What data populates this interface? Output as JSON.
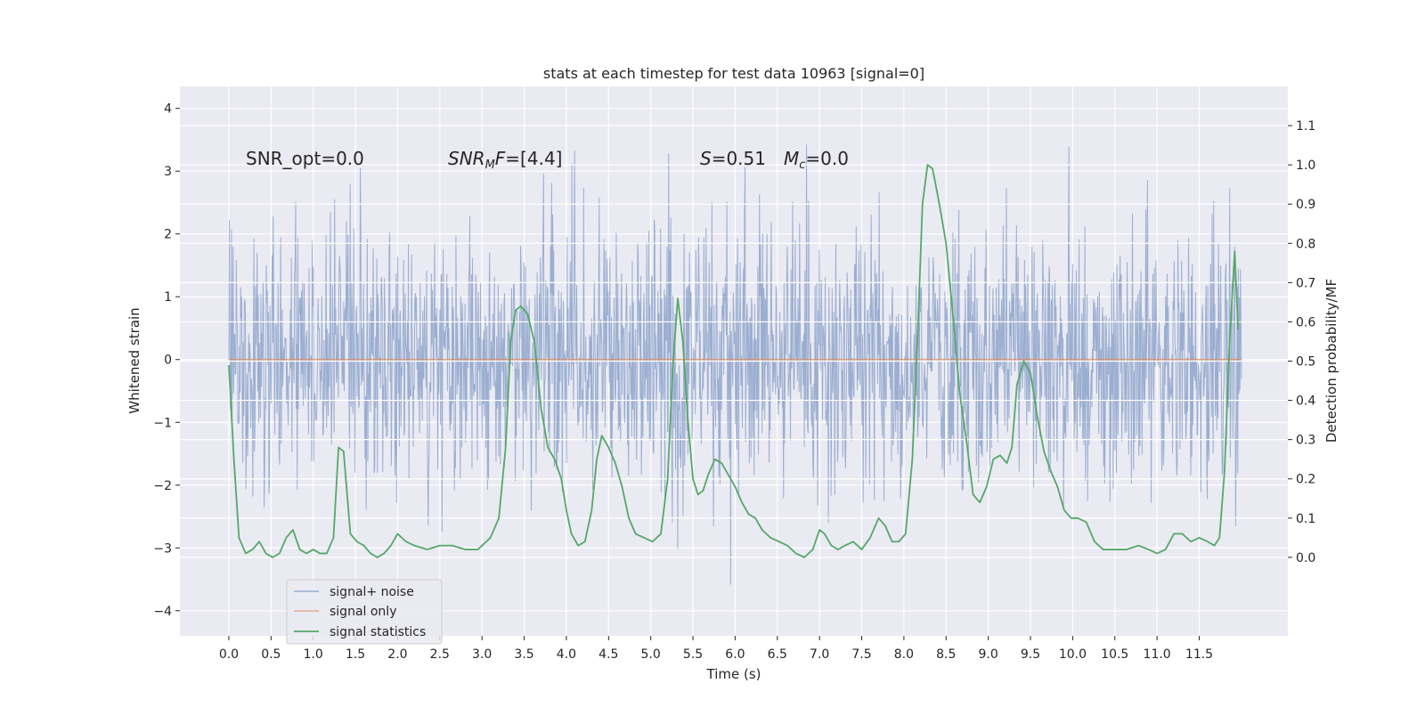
{
  "chart_data": {
    "type": "line",
    "title": "stats at each timestep for test data 10963 [signal=0]",
    "xlabel": "Time (s)",
    "ylabel_left": "Whitened strain",
    "ylabel_right": "Detection probability/MF",
    "xlim": [
      -0.58,
      12.55
    ],
    "ylim_left": [
      -4.4,
      4.35
    ],
    "ylim_right": [
      -0.2,
      1.2
    ],
    "x_ticks": [
      "0.0",
      "0.5",
      "1.0",
      "1.5",
      "2.0",
      "2.5",
      "3.0",
      "3.5",
      "4.0",
      "4.5",
      "5.0",
      "5.5",
      "6.0",
      "6.5",
      "7.0",
      "7.5",
      "8.0",
      "8.5",
      "9.0",
      "9.5",
      "10.0",
      "10.5",
      "11.0",
      "11.5"
    ],
    "y_ticks_left": [
      "4",
      "3",
      "2",
      "1",
      "0",
      "−1",
      "−2",
      "−3",
      "−4"
    ],
    "y_ticks_right": [
      "1.1",
      "1.0",
      "0.9",
      "0.8",
      "0.7",
      "0.6",
      "0.5",
      "0.4",
      "0.3",
      "0.2",
      "0.1",
      "0.0"
    ],
    "grid": true,
    "legend_position": "lower-left",
    "annotations": {
      "snr_opt": "SNR_opt=0.0",
      "snr_mf_main": "SNR",
      "snr_mf_sub": "M",
      "snr_mf_rest": "F=[4.4]",
      "s_label": "S",
      "s_value": "=0.51",
      "mc_main": "M",
      "mc_sub": "c",
      "mc_value": "=0.0"
    },
    "series": [
      {
        "name": "signal+ noise",
        "color": "#4c72b0",
        "axis": "left",
        "duration": 12.0,
        "envelope": [
          -4.1,
          3.95
        ]
      },
      {
        "name": "signal only",
        "color": "#dd8452",
        "axis": "left",
        "x": [
          0.0,
          12.0
        ],
        "y": [
          0.0,
          0.0
        ]
      },
      {
        "name": "signal statistics",
        "color": "#55a868",
        "axis": "right",
        "x": [
          0.0,
          0.06,
          0.12,
          0.2,
          0.28,
          0.36,
          0.44,
          0.52,
          0.6,
          0.68,
          0.76,
          0.84,
          0.92,
          1.0,
          1.08,
          1.16,
          1.24,
          1.3,
          1.36,
          1.44,
          1.52,
          1.6,
          1.68,
          1.76,
          1.84,
          1.92,
          2.0,
          2.1,
          2.2,
          2.35,
          2.5,
          2.65,
          2.8,
          2.95,
          3.1,
          3.2,
          3.28,
          3.34,
          3.4,
          3.46,
          3.54,
          3.62,
          3.7,
          3.78,
          3.86,
          3.94,
          4.0,
          4.06,
          4.14,
          4.22,
          4.3,
          4.36,
          4.42,
          4.5,
          4.58,
          4.66,
          4.74,
          4.82,
          4.92,
          5.02,
          5.12,
          5.2,
          5.26,
          5.32,
          5.38,
          5.44,
          5.5,
          5.56,
          5.62,
          5.68,
          5.76,
          5.84,
          5.92,
          6.0,
          6.08,
          6.16,
          6.24,
          6.32,
          6.42,
          6.52,
          6.62,
          6.72,
          6.82,
          6.92,
          7.0,
          7.06,
          7.14,
          7.22,
          7.3,
          7.4,
          7.5,
          7.6,
          7.7,
          7.78,
          7.86,
          7.94,
          8.02,
          8.1,
          8.16,
          8.22,
          8.28,
          8.34,
          8.42,
          8.5,
          8.58,
          8.66,
          8.74,
          8.82,
          8.9,
          8.98,
          9.06,
          9.14,
          9.22,
          9.28,
          9.34,
          9.42,
          9.5,
          9.58,
          9.66,
          9.74,
          9.82,
          9.9,
          9.98,
          10.06,
          10.16,
          10.26,
          10.36,
          10.5,
          10.64,
          10.78,
          10.9,
          11.0,
          11.1,
          11.2,
          11.3,
          11.4,
          11.5,
          11.6,
          11.68,
          11.74,
          11.8,
          11.86,
          11.92,
          11.96
        ],
        "y": [
          0.49,
          0.25,
          0.05,
          0.01,
          0.02,
          0.04,
          0.01,
          0.0,
          0.01,
          0.05,
          0.07,
          0.02,
          0.01,
          0.02,
          0.01,
          0.01,
          0.05,
          0.28,
          0.27,
          0.06,
          0.04,
          0.03,
          0.01,
          0.0,
          0.01,
          0.03,
          0.06,
          0.04,
          0.03,
          0.02,
          0.03,
          0.03,
          0.02,
          0.02,
          0.05,
          0.1,
          0.28,
          0.55,
          0.63,
          0.64,
          0.62,
          0.55,
          0.38,
          0.28,
          0.25,
          0.2,
          0.12,
          0.06,
          0.03,
          0.04,
          0.12,
          0.25,
          0.31,
          0.28,
          0.24,
          0.18,
          0.1,
          0.06,
          0.05,
          0.04,
          0.06,
          0.2,
          0.48,
          0.66,
          0.55,
          0.35,
          0.2,
          0.16,
          0.17,
          0.21,
          0.25,
          0.24,
          0.21,
          0.18,
          0.14,
          0.11,
          0.1,
          0.07,
          0.05,
          0.04,
          0.03,
          0.01,
          0.0,
          0.02,
          0.07,
          0.06,
          0.03,
          0.02,
          0.03,
          0.04,
          0.02,
          0.05,
          0.1,
          0.08,
          0.04,
          0.04,
          0.06,
          0.25,
          0.55,
          0.9,
          1.0,
          0.99,
          0.9,
          0.8,
          0.62,
          0.42,
          0.3,
          0.16,
          0.14,
          0.18,
          0.25,
          0.26,
          0.24,
          0.28,
          0.44,
          0.5,
          0.47,
          0.36,
          0.27,
          0.22,
          0.18,
          0.12,
          0.1,
          0.1,
          0.09,
          0.04,
          0.02,
          0.02,
          0.02,
          0.03,
          0.02,
          0.01,
          0.02,
          0.06,
          0.06,
          0.04,
          0.05,
          0.04,
          0.03,
          0.05,
          0.22,
          0.55,
          0.78,
          0.58
        ]
      }
    ]
  }
}
